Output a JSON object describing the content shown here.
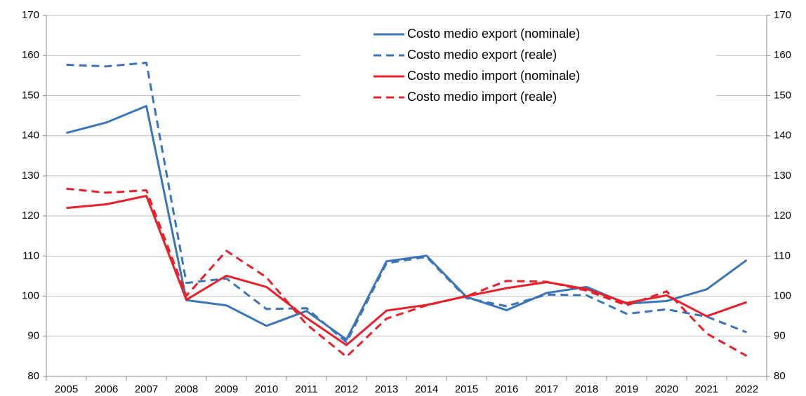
{
  "chart_data": {
    "type": "line",
    "categories": [
      "2005",
      "2006",
      "2007",
      "2008",
      "2009",
      "2010",
      "2011",
      "2012",
      "2013",
      "2014",
      "2015",
      "2016",
      "2017",
      "2018",
      "2019",
      "2020",
      "2021",
      "2022"
    ],
    "series": [
      {
        "name": "Costo medio export (nominale)",
        "color": "#3a75b8",
        "dashed": false,
        "values": [
          140.7,
          143.3,
          147.4,
          99.0,
          97.7,
          92.6,
          96.3,
          89.2,
          108.7,
          110.1,
          99.8,
          96.5,
          100.8,
          102.3,
          98.1,
          98.8,
          101.7,
          109.0
        ]
      },
      {
        "name": "Costo medio export (reale)",
        "color": "#3a75b8",
        "dashed": true,
        "values": [
          157.7,
          157.3,
          158.2,
          103.3,
          104.4,
          96.8,
          97.0,
          88.5,
          108.2,
          109.8,
          99.5,
          97.5,
          100.4,
          100.2,
          95.6,
          96.7,
          94.9,
          91.0
        ]
      },
      {
        "name": "Costo medio import (nominale)",
        "color": "#e8202a",
        "dashed": false,
        "values": [
          122.0,
          122.9,
          125.0,
          99.1,
          105.1,
          102.3,
          94.6,
          87.8,
          96.4,
          97.8,
          100.0,
          102.0,
          103.5,
          101.8,
          98.3,
          100.2,
          95.0,
          98.5
        ]
      },
      {
        "name": "Costo medio import (reale)",
        "color": "#e8202a",
        "dashed": true,
        "values": [
          126.8,
          125.8,
          126.4,
          100.1,
          111.3,
          104.7,
          93.0,
          84.9,
          94.4,
          97.7,
          100.0,
          103.8,
          103.6,
          101.4,
          97.7,
          101.2,
          90.7,
          85.1
        ]
      }
    ],
    "ylim": [
      80,
      170
    ],
    "yticks": [
      80,
      90,
      100,
      110,
      120,
      130,
      140,
      150,
      160,
      170
    ],
    "y2lim": [
      80,
      170
    ],
    "y2ticks": [
      80,
      90,
      100,
      110,
      120,
      130,
      140,
      150,
      160,
      170
    ],
    "grid": true,
    "legend": "top"
  }
}
